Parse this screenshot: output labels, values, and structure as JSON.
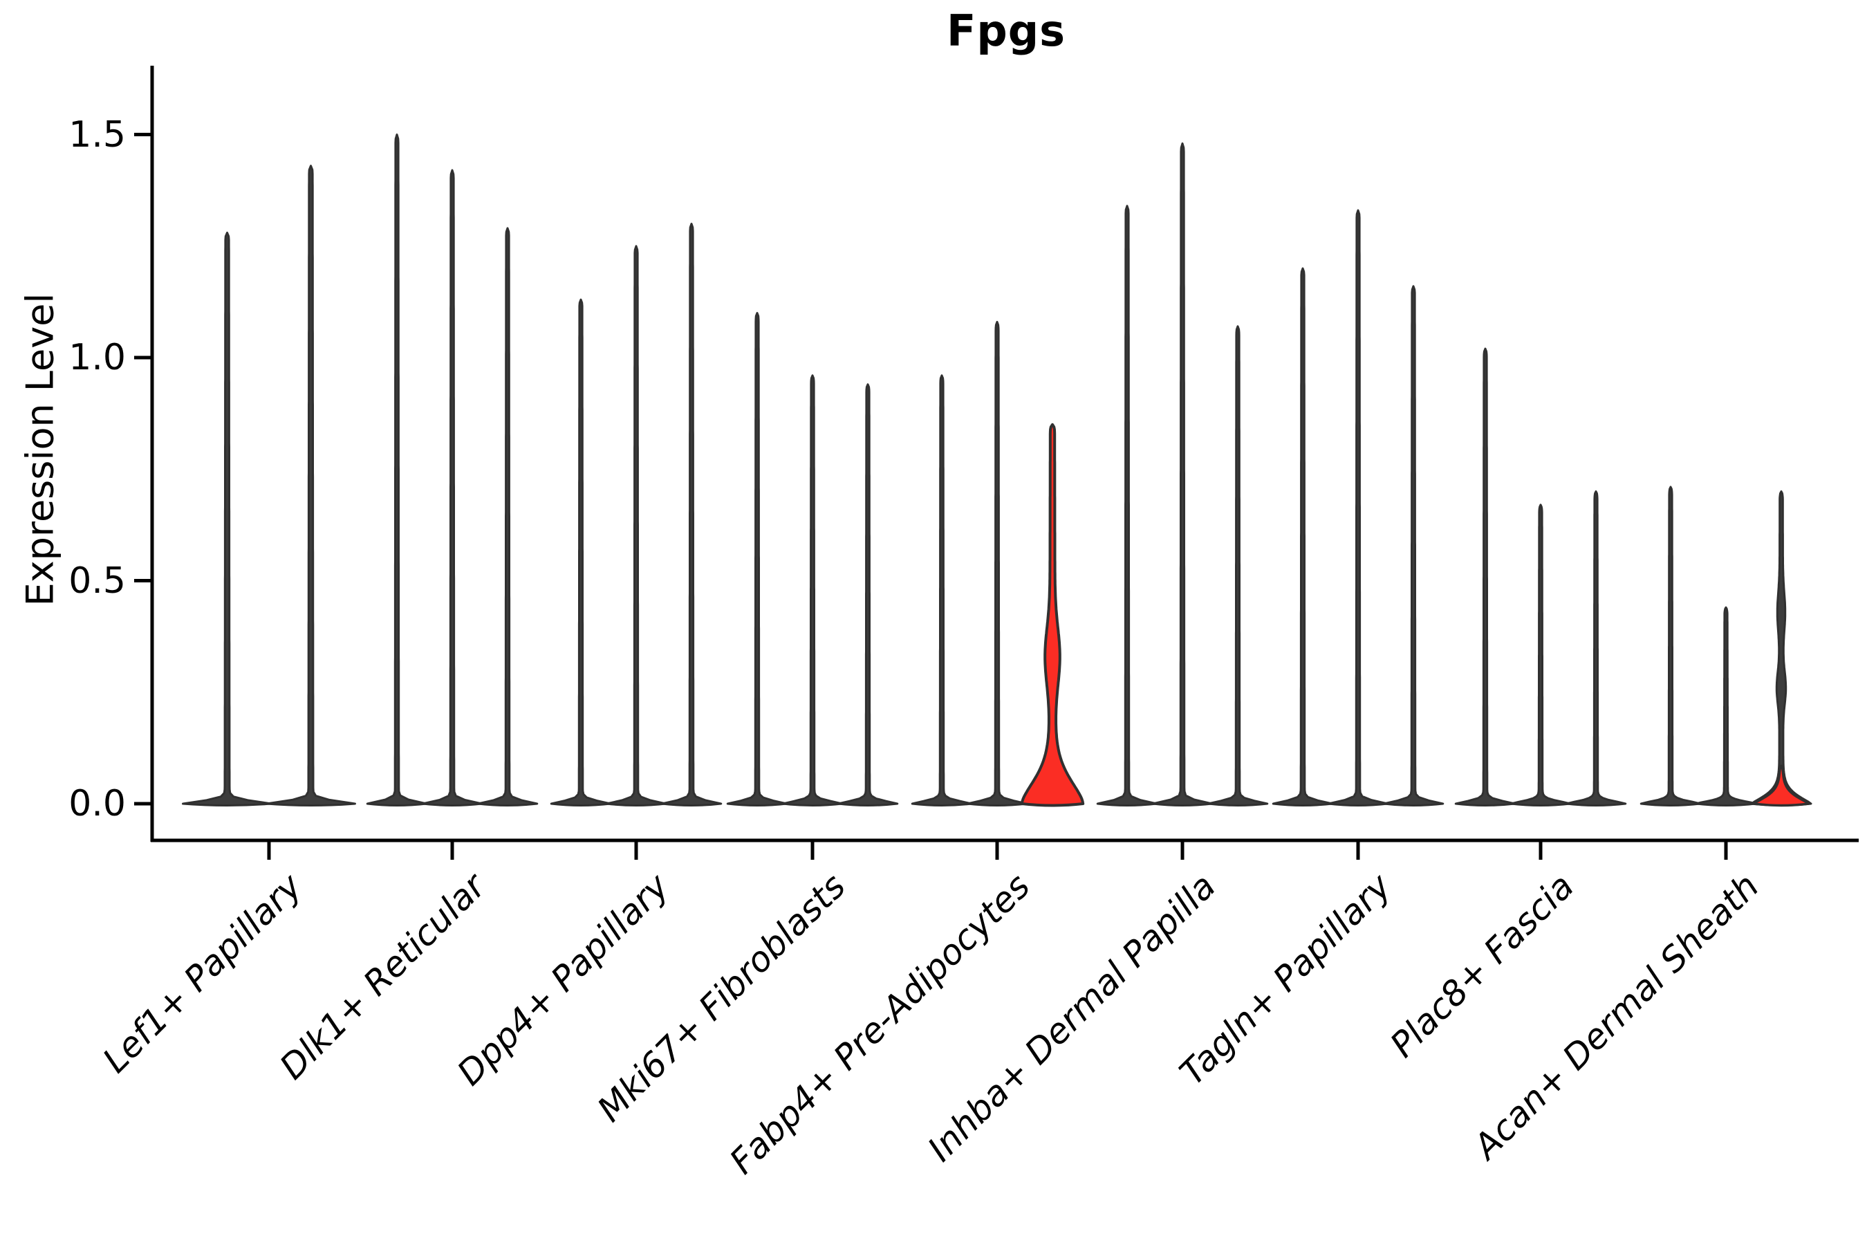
{
  "chart_data": {
    "type": "violin",
    "title": "Fpgs",
    "ylabel": "Expression Level",
    "xlabel": "",
    "ylim": [
      -0.08,
      1.66
    ],
    "grid": false,
    "legend": "none",
    "x_tick_rotation": 45,
    "y_ticks": [
      {
        "value": 0.0,
        "label": "0.0"
      },
      {
        "value": 0.5,
        "label": "0.5"
      },
      {
        "value": 1.0,
        "label": "1.0"
      },
      {
        "value": 1.5,
        "label": "1.5"
      }
    ],
    "colors": {
      "violin_fill": "#3d3d3d",
      "violin_edge": "#303030",
      "highlight_fill": "#fb2d24",
      "axis": "#000000",
      "background": "#ffffff"
    },
    "groups": [
      {
        "label": "Lef1+ Papillary",
        "violins": [
          {
            "peak": 1.28,
            "style": "dark"
          },
          {
            "peak": 1.43,
            "style": "dark"
          }
        ]
      },
      {
        "label": "Dlk1+ Reticular",
        "violins": [
          {
            "peak": 1.5,
            "style": "dark"
          },
          {
            "peak": 1.42,
            "style": "dark"
          },
          {
            "peak": 1.29,
            "style": "dark"
          }
        ]
      },
      {
        "label": "Dpp4+ Papillary",
        "violins": [
          {
            "peak": 1.13,
            "style": "dark"
          },
          {
            "peak": 1.25,
            "style": "dark"
          },
          {
            "peak": 1.3,
            "style": "dark"
          }
        ]
      },
      {
        "label": "Mki67+ Fibroblasts",
        "violins": [
          {
            "peak": 1.1,
            "style": "dark"
          },
          {
            "peak": 0.96,
            "style": "dark"
          },
          {
            "peak": 0.94,
            "style": "dark"
          }
        ]
      },
      {
        "label": "Fabp4+ Pre-Adipocytes",
        "violins": [
          {
            "peak": 0.96,
            "style": "dark"
          },
          {
            "peak": 1.08,
            "style": "dark"
          },
          {
            "peak": 0.85,
            "style": "red"
          }
        ]
      },
      {
        "label": "Inhba+ Dermal Papilla",
        "violins": [
          {
            "peak": 1.34,
            "style": "dark"
          },
          {
            "peak": 1.48,
            "style": "dark"
          },
          {
            "peak": 1.07,
            "style": "dark"
          }
        ]
      },
      {
        "label": "Tagln+ Papillary",
        "violins": [
          {
            "peak": 1.2,
            "style": "dark"
          },
          {
            "peak": 1.33,
            "style": "dark"
          },
          {
            "peak": 1.16,
            "style": "dark"
          }
        ]
      },
      {
        "label": "Plac8+ Fascia",
        "violins": [
          {
            "peak": 1.02,
            "style": "dark"
          },
          {
            "peak": 0.67,
            "style": "dark"
          },
          {
            "peak": 0.7,
            "style": "dark"
          }
        ]
      },
      {
        "label": "Acan+ Dermal Sheath",
        "violins": [
          {
            "peak": 0.71,
            "style": "dark"
          },
          {
            "peak": 0.44,
            "style": "dark"
          },
          {
            "peak": 0.7,
            "style": "red_base"
          }
        ]
      }
    ]
  }
}
